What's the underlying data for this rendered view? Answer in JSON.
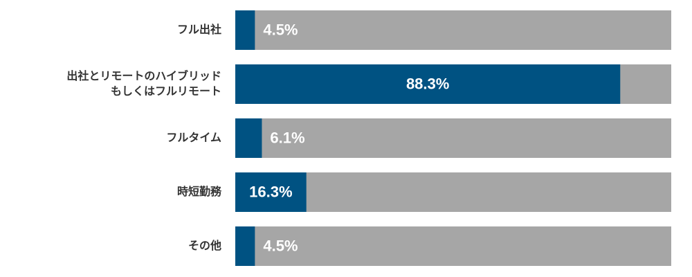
{
  "chart_data": {
    "type": "bar",
    "orientation": "horizontal",
    "categories": [
      [
        "フル出社"
      ],
      [
        "出社とリモートのハイブリッド",
        "もしくはフルリモート"
      ],
      [
        "フルタイム"
      ],
      [
        "時短勤務"
      ],
      [
        "その他"
      ]
    ],
    "values": [
      4.5,
      88.3,
      6.1,
      16.3,
      4.5
    ],
    "value_labels": [
      "4.5%",
      "88.3%",
      "6.1%",
      "16.3%",
      "4.5%"
    ],
    "xlim": [
      0,
      100
    ],
    "color": "#005282",
    "track_color": "#a6a6a6"
  }
}
